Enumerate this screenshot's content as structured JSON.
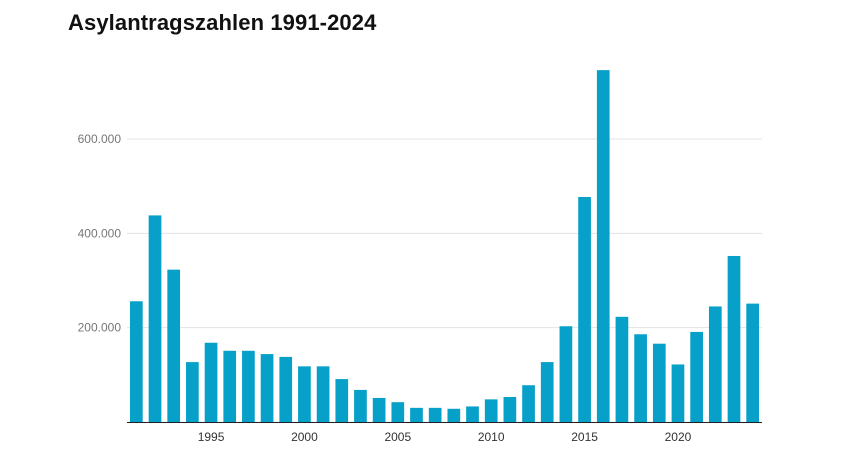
{
  "chart_data": {
    "type": "bar",
    "title": "Asylantragszahlen 1991-2024",
    "xlabel": "",
    "ylabel": "",
    "categories": [
      1991,
      1992,
      1993,
      1994,
      1995,
      1996,
      1997,
      1998,
      1999,
      2000,
      2001,
      2002,
      2003,
      2004,
      2005,
      2006,
      2007,
      2008,
      2009,
      2010,
      2011,
      2012,
      2013,
      2014,
      2015,
      2016,
      2017,
      2018,
      2019,
      2020,
      2021,
      2022,
      2023,
      2024
    ],
    "values": [
      256000,
      438000,
      323000,
      127000,
      168000,
      151000,
      151000,
      144000,
      138000,
      118000,
      118000,
      91000,
      68000,
      51000,
      42000,
      30000,
      30000,
      28000,
      33000,
      48000,
      53000,
      78000,
      127000,
      203000,
      477000,
      746000,
      223000,
      186000,
      166000,
      122000,
      191000,
      245000,
      352000,
      251000
    ],
    "ylim": [
      0,
      750000
    ],
    "yticks": [
      200000,
      400000,
      600000
    ],
    "ytick_labels": [
      "200.000",
      "400.000",
      "600.000"
    ],
    "xtick_labels": [
      "1995",
      "2000",
      "2005",
      "2010",
      "2015",
      "2020"
    ],
    "grid": true,
    "colors": {
      "bar": "#06a0c8",
      "grid": "#e3e3e3",
      "axis": "#222222"
    }
  }
}
